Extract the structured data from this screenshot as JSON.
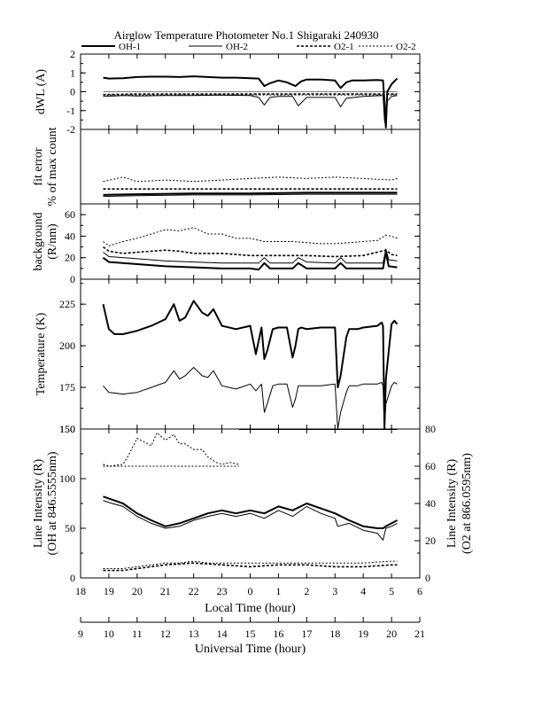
{
  "title": "Airglow Temperature Photometer No.1  Shigaraki  240930",
  "legend": [
    {
      "name": "OH-1",
      "color": "#000000",
      "width": 2,
      "dash": ""
    },
    {
      "name": "OH-2",
      "color": "#000000",
      "width": 1,
      "dash": ""
    },
    {
      "name": "O2-1",
      "color": "#000000",
      "width": 1.6,
      "dash": "3,2"
    },
    {
      "name": "O2-2",
      "color": "#000000",
      "width": 1,
      "dash": "2,2"
    }
  ],
  "chart_data": [
    {
      "type": "line",
      "panel": "dwl",
      "ylabel_lines": [
        "dWL (A)"
      ],
      "ylim": [
        -2,
        2
      ],
      "yticks": [
        "-2",
        "-1",
        "0",
        "1",
        "2"
      ],
      "series": [
        {
          "name": "OH-1",
          "x": [
            18.8,
            19.0,
            19.5,
            20.0,
            20.5,
            21.0,
            21.5,
            22.0,
            22.5,
            23.0,
            23.5,
            24.0,
            24.3,
            24.5,
            24.7,
            25.0,
            25.3,
            25.6,
            25.8,
            26.0,
            26.5,
            27.0,
            27.2,
            27.4,
            27.6,
            28.0,
            28.5,
            28.7,
            28.75,
            28.8,
            28.85,
            29.0,
            29.2
          ],
          "y": [
            0.75,
            0.7,
            0.72,
            0.78,
            0.8,
            0.8,
            0.78,
            0.82,
            0.78,
            0.75,
            0.75,
            0.72,
            0.7,
            0.3,
            0.45,
            0.6,
            0.5,
            0.3,
            0.55,
            0.65,
            0.65,
            0.6,
            0.2,
            0.5,
            0.6,
            0.6,
            0.62,
            0.6,
            -0.5,
            -1.9,
            0.0,
            0.4,
            0.7
          ]
        },
        {
          "name": "OH-2",
          "x": [
            18.8,
            19.5,
            20.0,
            21.0,
            22.0,
            23.0,
            24.0,
            24.3,
            24.5,
            24.7,
            25.0,
            25.5,
            25.7,
            26.0,
            27.0,
            27.2,
            27.4,
            28.0,
            28.7,
            28.75,
            28.8,
            28.85,
            29.0,
            29.2
          ],
          "y": [
            -0.25,
            -0.2,
            -0.22,
            -0.2,
            -0.2,
            -0.18,
            -0.2,
            -0.3,
            -0.7,
            -0.3,
            -0.25,
            -0.25,
            -0.75,
            -0.3,
            -0.3,
            -0.8,
            -0.35,
            -0.25,
            -0.2,
            -1.5,
            -1.9,
            -0.5,
            -0.25,
            -0.2
          ]
        },
        {
          "name": "O2-1",
          "x": [
            18.8,
            20.0,
            22.0,
            24.0,
            26.0,
            28.0,
            29.2
          ],
          "y": [
            -0.15,
            -0.12,
            -0.12,
            -0.12,
            -0.12,
            -0.12,
            -0.12
          ]
        },
        {
          "name": "O2-2",
          "x": [
            18.8,
            20.0,
            22.0,
            24.0,
            26.0,
            28.0,
            29.2
          ],
          "y": [
            -0.18,
            -0.18,
            -0.17,
            -0.17,
            -0.17,
            -0.17,
            -0.17
          ]
        }
      ]
    },
    {
      "type": "line",
      "panel": "fit_error",
      "ylabel_lines": [
        "fit error",
        "% of max count"
      ],
      "ylim": [
        0,
        5
      ],
      "yticks": [],
      "series": [
        {
          "name": "OH-1",
          "x": [
            18.8,
            20.0,
            22.0,
            24.0,
            26.0,
            28.0,
            29.2
          ],
          "y": [
            0.6,
            0.65,
            0.7,
            0.7,
            0.75,
            0.75,
            0.75
          ]
        },
        {
          "name": "OH-2",
          "x": [
            18.8,
            20.0,
            22.0,
            24.0,
            26.0,
            28.0,
            29.2
          ],
          "y": [
            0.5,
            0.55,
            0.6,
            0.6,
            0.65,
            0.65,
            0.65
          ]
        },
        {
          "name": "O2-1",
          "x": [
            18.8,
            20.0,
            22.0,
            24.0,
            26.0,
            28.0,
            29.2
          ],
          "y": [
            1.0,
            1.0,
            1.0,
            1.0,
            1.0,
            1.0,
            1.0
          ]
        },
        {
          "name": "O2-2",
          "x": [
            18.8,
            19.5,
            20.0,
            21.0,
            22.0,
            23.0,
            24.0,
            25.0,
            26.0,
            27.0,
            28.0,
            29.0,
            29.2
          ],
          "y": [
            1.5,
            1.8,
            1.5,
            1.6,
            1.5,
            1.6,
            1.7,
            1.8,
            1.7,
            1.8,
            1.7,
            1.6,
            1.7
          ]
        }
      ]
    },
    {
      "type": "line",
      "panel": "background",
      "ylabel_lines": [
        "background",
        "(R/nm)"
      ],
      "ylim": [
        0,
        70
      ],
      "yticks": [
        "0",
        "20",
        "40",
        "60"
      ],
      "series": [
        {
          "name": "OH-1",
          "x": [
            18.8,
            19.0,
            20.0,
            21.0,
            22.0,
            23.0,
            24.0,
            24.3,
            24.5,
            24.7,
            25.0,
            25.5,
            25.7,
            26.0,
            27.0,
            27.2,
            27.4,
            28.0,
            28.7,
            28.8,
            28.9,
            29.2
          ],
          "y": [
            20,
            16,
            14,
            12,
            11,
            10,
            10,
            9,
            15,
            10,
            10,
            10,
            15,
            10,
            10,
            15,
            10,
            10,
            10,
            25,
            12,
            11
          ]
        },
        {
          "name": "OH-2",
          "x": [
            18.8,
            19.0,
            20.0,
            21.0,
            22.0,
            23.0,
            24.0,
            24.3,
            24.5,
            24.7,
            25.0,
            25.5,
            25.7,
            26.0,
            27.0,
            27.2,
            27.4,
            28.0,
            28.7,
            28.8,
            28.9,
            29.2
          ],
          "y": [
            25,
            21,
            19,
            17,
            16,
            15,
            15,
            15,
            20,
            15,
            15,
            15,
            20,
            16,
            15,
            20,
            15,
            15,
            15,
            28,
            18,
            17
          ]
        },
        {
          "name": "O2-1",
          "x": [
            18.8,
            19.0,
            19.5,
            20.0,
            21.0,
            21.5,
            22.0,
            23.0,
            24.0,
            25.0,
            26.0,
            27.0,
            28.0,
            28.8,
            29.0,
            29.2
          ],
          "y": [
            30,
            26,
            24,
            25,
            27,
            26,
            24,
            24,
            22,
            22,
            22,
            21,
            22,
            27,
            23,
            22
          ]
        },
        {
          "name": "O2-2",
          "x": [
            18.8,
            19.0,
            19.5,
            20.0,
            20.5,
            21.0,
            21.5,
            22.0,
            22.5,
            23.0,
            23.5,
            24.0,
            24.5,
            25.0,
            25.5,
            26.0,
            26.5,
            27.0,
            27.5,
            28.0,
            28.5,
            28.8,
            29.0,
            29.2
          ],
          "y": [
            35,
            31,
            35,
            38,
            42,
            46,
            45,
            48,
            42,
            42,
            38,
            38,
            35,
            35,
            35,
            34,
            33,
            33,
            34,
            35,
            36,
            41,
            40,
            38
          ]
        }
      ]
    },
    {
      "type": "line",
      "panel": "temperature",
      "ylabel_lines": [
        "Temperature (K)"
      ],
      "ylim": [
        150,
        240
      ],
      "yticks": [
        "150",
        "175",
        "200",
        "225"
      ],
      "series": [
        {
          "name": "OH-1",
          "x": [
            18.8,
            19.0,
            19.2,
            19.5,
            20.0,
            20.5,
            21.0,
            21.3,
            21.5,
            21.7,
            22.0,
            22.3,
            22.5,
            22.7,
            23.0,
            23.5,
            24.0,
            24.2,
            24.4,
            24.5,
            24.6,
            24.8,
            25.0,
            25.3,
            25.5,
            25.6,
            25.7,
            25.8,
            26.0,
            26.5,
            27.0,
            27.1,
            27.2,
            27.4,
            27.5,
            27.8,
            28.0,
            28.5,
            28.65,
            28.7,
            28.75,
            28.8,
            29.0,
            29.1,
            29.2
          ],
          "y": [
            225,
            210,
            207,
            207,
            209,
            212,
            216,
            225,
            215,
            217,
            227,
            220,
            218,
            222,
            212,
            210,
            212,
            195,
            211,
            192,
            197,
            210,
            211,
            211,
            193,
            200,
            210,
            211,
            210,
            211,
            211,
            175,
            182,
            205,
            210,
            210,
            211,
            212,
            214,
            212,
            150,
            180,
            213,
            215,
            213
          ]
        },
        {
          "name": "OH-2",
          "x": [
            18.8,
            19.0,
            19.5,
            20.0,
            20.5,
            21.0,
            21.3,
            21.5,
            21.7,
            22.0,
            22.3,
            22.5,
            22.7,
            23.0,
            23.5,
            24.0,
            24.2,
            24.4,
            24.5,
            24.6,
            24.8,
            25.0,
            25.3,
            25.5,
            25.6,
            25.7,
            25.8,
            26.0,
            26.5,
            27.0,
            27.1,
            27.2,
            27.4,
            27.5,
            27.8,
            28.0,
            28.5,
            28.65,
            28.7,
            28.75,
            28.8,
            29.0,
            29.1,
            29.2
          ],
          "y": [
            176,
            172,
            171,
            172,
            175,
            178,
            185,
            180,
            182,
            187,
            182,
            181,
            185,
            176,
            174,
            177,
            173,
            177,
            160,
            165,
            176,
            177,
            177,
            163,
            168,
            176,
            176,
            176,
            176,
            177,
            150,
            160,
            172,
            176,
            176,
            177,
            177,
            178,
            176,
            150,
            165,
            176,
            178,
            177
          ]
        }
      ]
    },
    {
      "type": "line",
      "panel": "line_intensity",
      "ylabel_lines": [
        "Line Intensity (R)",
        "(OH at 846.5555nm)"
      ],
      "ylim": [
        0,
        150
      ],
      "yticks": [
        "0",
        "50",
        "100",
        "150"
      ],
      "y2label_lines": [
        "Line Intensity (R)",
        "(O2 at 866.0595nm)"
      ],
      "y2lim": [
        0,
        80
      ],
      "y2ticks": [
        "0",
        "20",
        "40",
        "60",
        "80"
      ],
      "series": [
        {
          "name": "OH-1",
          "axis": "left",
          "x": [
            18.8,
            19.0,
            19.5,
            20.0,
            20.5,
            21.0,
            21.5,
            22.0,
            22.5,
            23.0,
            23.5,
            24.0,
            24.5,
            25.0,
            25.5,
            26.0,
            26.5,
            27.0,
            27.5,
            28.0,
            28.5,
            28.7,
            28.8,
            29.0,
            29.2
          ],
          "y": [
            82,
            80,
            75,
            65,
            58,
            52,
            55,
            60,
            65,
            68,
            65,
            68,
            65,
            72,
            68,
            75,
            70,
            65,
            58,
            52,
            50,
            50,
            52,
            55,
            58
          ]
        },
        {
          "name": "OH-2",
          "axis": "left",
          "x": [
            18.8,
            19.0,
            19.5,
            20.0,
            20.5,
            21.0,
            21.5,
            22.0,
            22.5,
            23.0,
            23.5,
            24.0,
            24.5,
            25.0,
            25.5,
            26.0,
            26.5,
            27.0,
            27.1,
            27.5,
            28.0,
            28.5,
            28.7,
            28.8,
            29.0,
            29.2
          ],
          "y": [
            78,
            76,
            72,
            62,
            55,
            50,
            52,
            58,
            62,
            65,
            62,
            65,
            60,
            68,
            62,
            72,
            65,
            60,
            52,
            55,
            48,
            45,
            38,
            50,
            52,
            55
          ]
        },
        {
          "name": "O2-1",
          "axis": "right",
          "x": [
            18.8,
            19.0,
            19.5,
            20.0,
            20.5,
            21.0,
            22.0,
            23.0,
            24.0,
            25.0,
            26.0,
            27.0,
            28.0,
            29.0,
            29.2
          ],
          "y": [
            4,
            4,
            4,
            5,
            6,
            7,
            8,
            7,
            6,
            7,
            7,
            6,
            6,
            7,
            7
          ]
        },
        {
          "name": "O2-2",
          "axis": "right",
          "x": [
            18.8,
            19.0,
            19.5,
            20.0,
            20.5,
            21.0,
            21.5,
            22.0,
            22.5,
            23.0,
            23.5,
            24.0,
            25.0,
            26.0,
            27.0,
            28.0,
            29.0,
            29.2
          ],
          "y": [
            5,
            5,
            5,
            6,
            7,
            8,
            8,
            9,
            8,
            8,
            8,
            8,
            8,
            8,
            8,
            8,
            9,
            9
          ]
        },
        {
          "name": "O2-2 upper",
          "axis": "right",
          "x": [
            18.8,
            19.0,
            19.5,
            19.7,
            20.0,
            20.5,
            20.7,
            21.0,
            21.3,
            21.5,
            21.7,
            22.0,
            22.3,
            22.5,
            22.8,
            23.0,
            23.3,
            23.6
          ],
          "y": [
            61,
            60,
            61,
            66,
            75,
            71,
            78,
            74,
            77,
            72,
            72,
            69,
            69,
            65,
            62,
            61,
            62,
            61
          ]
        },
        {
          "name": "O2-2 baseline",
          "axis": "right",
          "x": [
            18.8,
            23.6
          ],
          "y": [
            60,
            60
          ]
        },
        {
          "name": "OH-1 baseline",
          "axis": "left",
          "x": [
            23.6,
            29.2
          ],
          "y": [
            150,
            150
          ]
        }
      ],
      "xlabel": "Local Time (hour)",
      "xlim": [
        18,
        30
      ],
      "xticks": [
        "18",
        "19",
        "20",
        "21",
        "22",
        "23",
        "0",
        "1",
        "2",
        "3",
        "4",
        "5",
        "6"
      ],
      "x2label": "Universal Time (hour)",
      "x2ticks": [
        "9",
        "10",
        "11",
        "12",
        "13",
        "14",
        "15",
        "16",
        "17",
        "18",
        "19",
        "20",
        "21"
      ]
    }
  ]
}
